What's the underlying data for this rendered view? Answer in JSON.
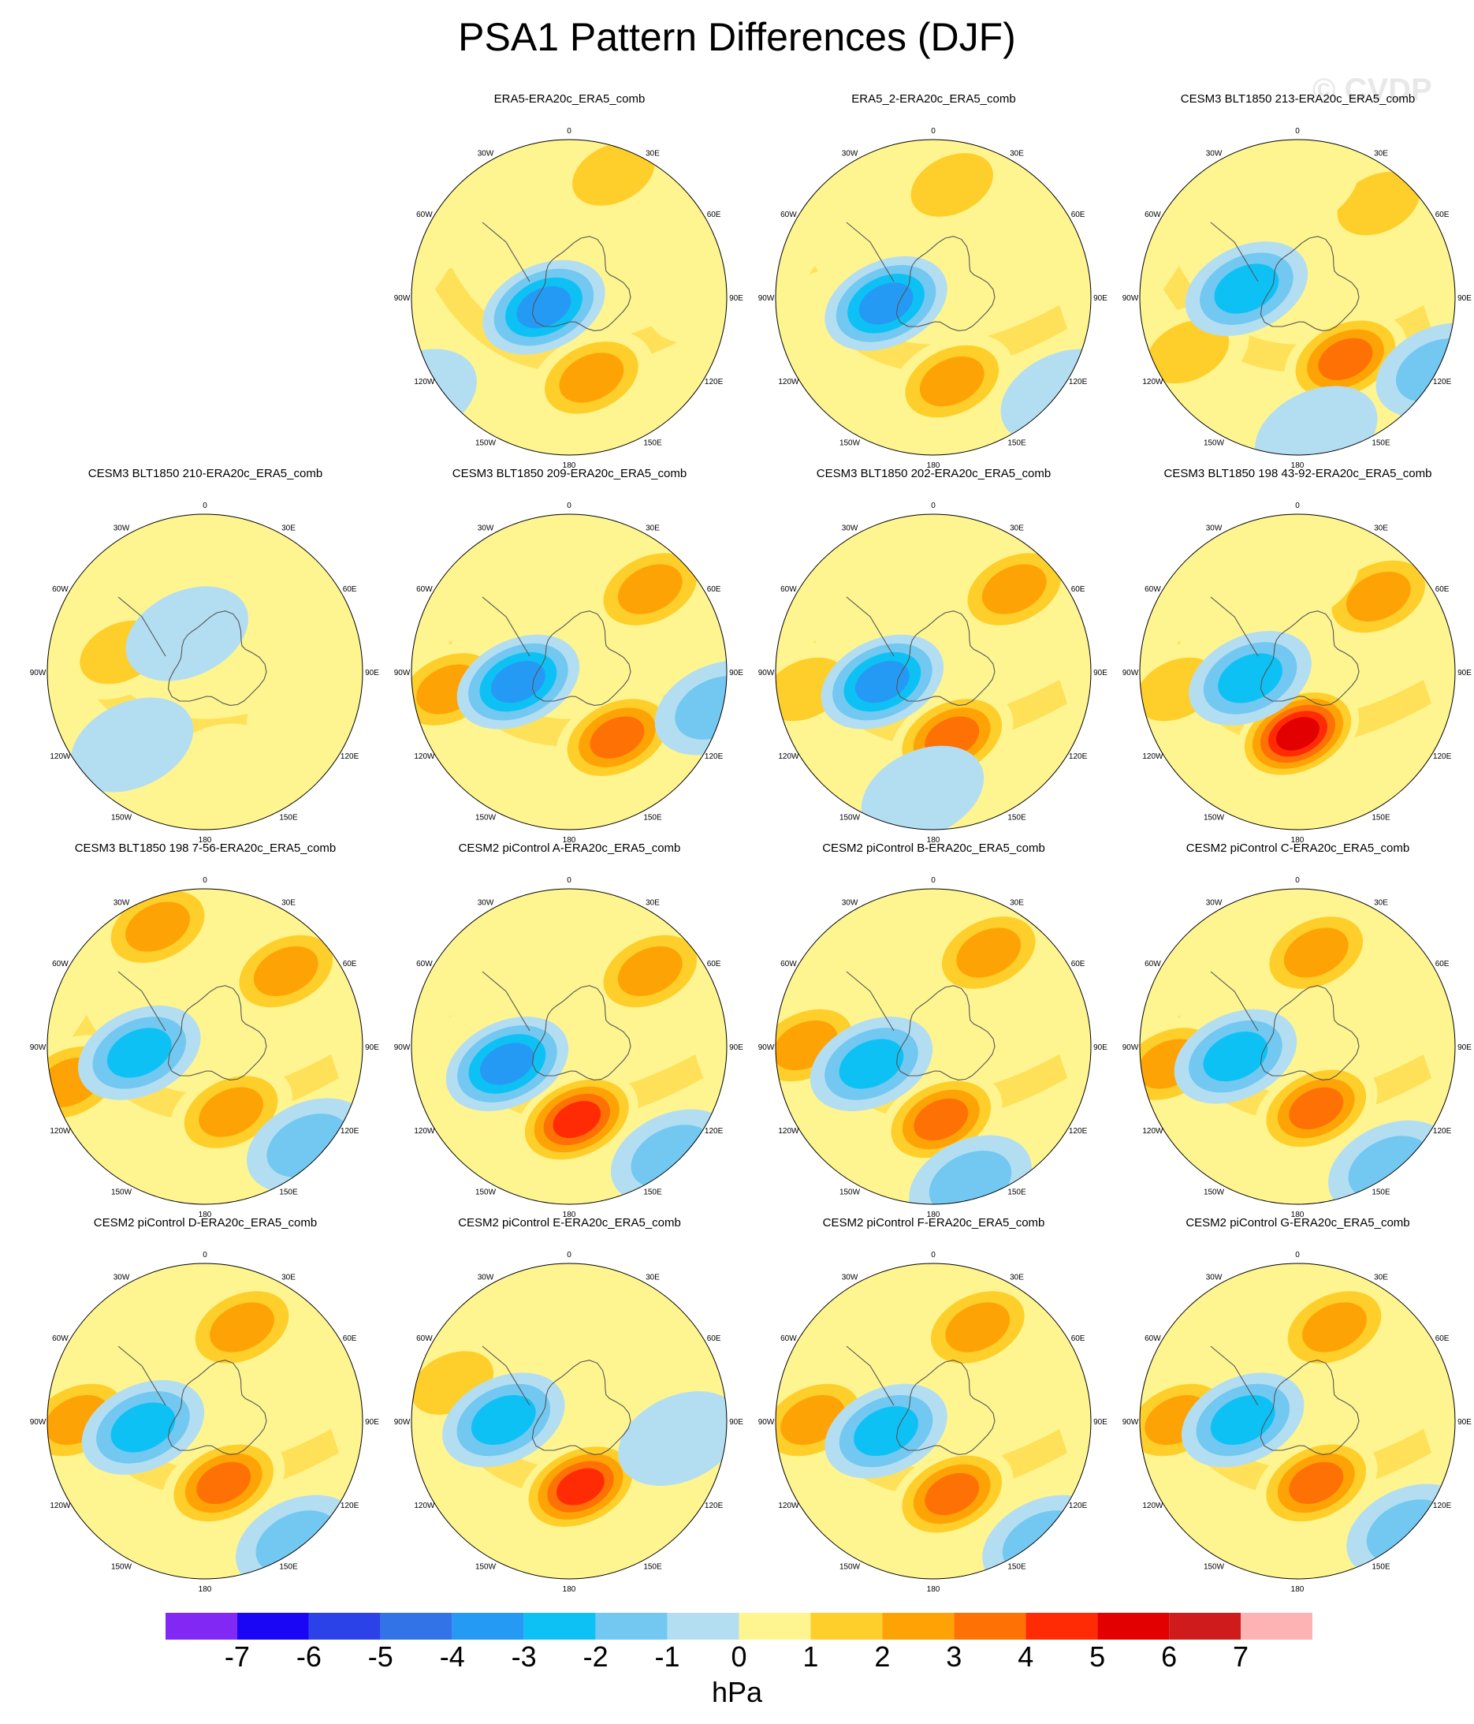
{
  "figure": {
    "title": "PSA1 Pattern Differences (DJF)",
    "watermark": "© CVDP",
    "units": "hPa"
  },
  "lon_labels": [
    "0",
    "30E",
    "60E",
    "90E",
    "120E",
    "150E",
    "180",
    "150W",
    "120W",
    "90W",
    "60W",
    "30W"
  ],
  "colorbar": {
    "colors": [
      "#8228f5",
      "#1a05f5",
      "#2a42e8",
      "#3273e8",
      "#249af5",
      "#0ec1f5",
      "#72c8f0",
      "#b3def2",
      "#fef590",
      "#fece2b",
      "#fea305",
      "#fe7105",
      "#fe2b05",
      "#e30000",
      "#cf1b1b",
      "#fdb3b3"
    ],
    "labels": [
      "-7",
      "-6",
      "-5",
      "-4",
      "-3",
      "-2",
      "-1",
      "0",
      "1",
      "2",
      "3",
      "4",
      "5",
      "6",
      "7"
    ]
  },
  "panels": [
    {
      "title": "ERA5-ERA20c_ERA5_comb",
      "lows": [
        [
          -4,
          0.43,
          0.58
        ],
        [
          -1,
          0.08,
          0.82
        ]
      ],
      "highs": [
        [
          3,
          0.56,
          0.77
        ],
        [
          2,
          0.62,
          0.22
        ],
        [
          1,
          0.2,
          0.35
        ],
        [
          1,
          0.88,
          0.55
        ]
      ]
    },
    {
      "title": "ERA5_2-ERA20c_ERA5_comb",
      "lows": [
        [
          -4,
          0.37,
          0.57
        ],
        [
          -1,
          0.85,
          0.82
        ]
      ],
      "highs": [
        [
          3,
          0.55,
          0.78
        ],
        [
          2,
          0.55,
          0.25
        ],
        [
          1,
          0.2,
          0.6
        ]
      ]
    },
    {
      "title": "CESM3 BLT1850 213-ERA20c_ERA5_comb",
      "lows": [
        [
          -3,
          0.36,
          0.53
        ],
        [
          -2,
          0.88,
          0.75
        ],
        [
          -1,
          0.55,
          0.92
        ]
      ],
      "highs": [
        [
          4,
          0.63,
          0.72
        ],
        [
          2,
          0.72,
          0.3
        ],
        [
          2,
          0.2,
          0.7
        ],
        [
          1,
          0.5,
          0.25
        ]
      ]
    },
    {
      "title": "CESM3 BLT1850 210-ERA20c_ERA5_comb",
      "lows": [
        [
          -1,
          0.45,
          0.45
        ],
        [
          -1,
          0.3,
          0.75
        ]
      ],
      "highs": [
        [
          2,
          0.27,
          0.5
        ],
        [
          1,
          0.5,
          0.2
        ],
        [
          1,
          0.78,
          0.65
        ],
        [
          1,
          0.52,
          0.82
        ]
      ]
    },
    {
      "title": "CESM3 BLT1850 209-ERA20c_ERA5_comb",
      "lows": [
        [
          -4,
          0.36,
          0.58
        ],
        [
          -2,
          0.9,
          0.65
        ]
      ],
      "highs": [
        [
          4,
          0.63,
          0.73
        ],
        [
          3,
          0.72,
          0.33
        ],
        [
          3,
          0.17,
          0.6
        ]
      ]
    },
    {
      "title": "CESM3 BLT1850 202-ERA20c_ERA5_comb",
      "lows": [
        [
          -4,
          0.36,
          0.58
        ],
        [
          -1,
          0.47,
          0.88
        ]
      ],
      "highs": [
        [
          4,
          0.55,
          0.73
        ],
        [
          3,
          0.72,
          0.33
        ],
        [
          2,
          0.15,
          0.6
        ]
      ]
    },
    {
      "title": "CESM3 BLT1850 198 43-92-ERA20c_ERA5_comb",
      "lows": [
        [
          -3,
          0.37,
          0.57
        ]
      ],
      "highs": [
        [
          6,
          0.5,
          0.72
        ],
        [
          3,
          0.72,
          0.35
        ],
        [
          2,
          0.17,
          0.6
        ],
        [
          1,
          0.5,
          0.3
        ]
      ]
    },
    {
      "title": "CESM3 BLT1850 198 7-56-ERA20c_ERA5_comb",
      "lows": [
        [
          -3,
          0.32,
          0.57
        ],
        [
          -2,
          0.78,
          0.82
        ]
      ],
      "highs": [
        [
          3,
          0.72,
          0.35
        ],
        [
          3,
          0.57,
          0.73
        ],
        [
          3,
          0.13,
          0.65
        ],
        [
          3,
          0.37,
          0.23
        ]
      ]
    },
    {
      "title": "CESM2 piControl A-ERA20c_ERA5_comb",
      "lows": [
        [
          -4,
          0.33,
          0.6
        ],
        [
          -2,
          0.78,
          0.85
        ]
      ],
      "highs": [
        [
          5,
          0.52,
          0.75
        ],
        [
          3,
          0.72,
          0.35
        ],
        [
          1,
          0.13,
          0.6
        ]
      ]
    },
    {
      "title": "CESM2 piControl B-ERA20c_ERA5_comb",
      "lows": [
        [
          -3,
          0.33,
          0.6
        ],
        [
          -2,
          0.6,
          0.92
        ]
      ],
      "highs": [
        [
          4,
          0.52,
          0.75
        ],
        [
          3,
          0.65,
          0.3
        ],
        [
          3,
          0.15,
          0.55
        ]
      ]
    },
    {
      "title": "CESM2 piControl C-ERA20c_ERA5_comb",
      "lows": [
        [
          -3,
          0.33,
          0.58
        ],
        [
          -2,
          0.75,
          0.88
        ]
      ],
      "highs": [
        [
          4,
          0.55,
          0.72
        ],
        [
          3,
          0.55,
          0.3
        ],
        [
          3,
          0.15,
          0.6
        ]
      ]
    },
    {
      "title": "CESM2 piControl D-ERA20c_ERA5_comb",
      "lows": [
        [
          -3,
          0.33,
          0.57
        ],
        [
          -2,
          0.75,
          0.88
        ]
      ],
      "highs": [
        [
          4,
          0.55,
          0.72
        ],
        [
          3,
          0.6,
          0.3
        ],
        [
          3,
          0.15,
          0.55
        ]
      ]
    },
    {
      "title": "CESM2 piControl E-ERA20c_ERA5_comb",
      "lows": [
        [
          -3,
          0.32,
          0.55
        ],
        [
          -1,
          0.8,
          0.6
        ]
      ],
      "highs": [
        [
          5,
          0.53,
          0.73
        ],
        [
          1,
          0.55,
          0.3
        ],
        [
          2,
          0.18,
          0.45
        ]
      ]
    },
    {
      "title": "CESM2 piControl F-ERA20c_ERA5_comb",
      "lows": [
        [
          -3,
          0.37,
          0.58
        ],
        [
          -2,
          0.8,
          0.88
        ]
      ],
      "highs": [
        [
          4,
          0.55,
          0.75
        ],
        [
          3,
          0.62,
          0.3
        ],
        [
          3,
          0.17,
          0.55
        ]
      ]
    },
    {
      "title": "CESM2 piControl G-ERA20c_ERA5_comb",
      "lows": [
        [
          -3,
          0.35,
          0.55
        ],
        [
          -2,
          0.8,
          0.85
        ]
      ],
      "highs": [
        [
          4,
          0.55,
          0.72
        ],
        [
          3,
          0.6,
          0.3
        ],
        [
          3,
          0.17,
          0.55
        ]
      ]
    }
  ]
}
